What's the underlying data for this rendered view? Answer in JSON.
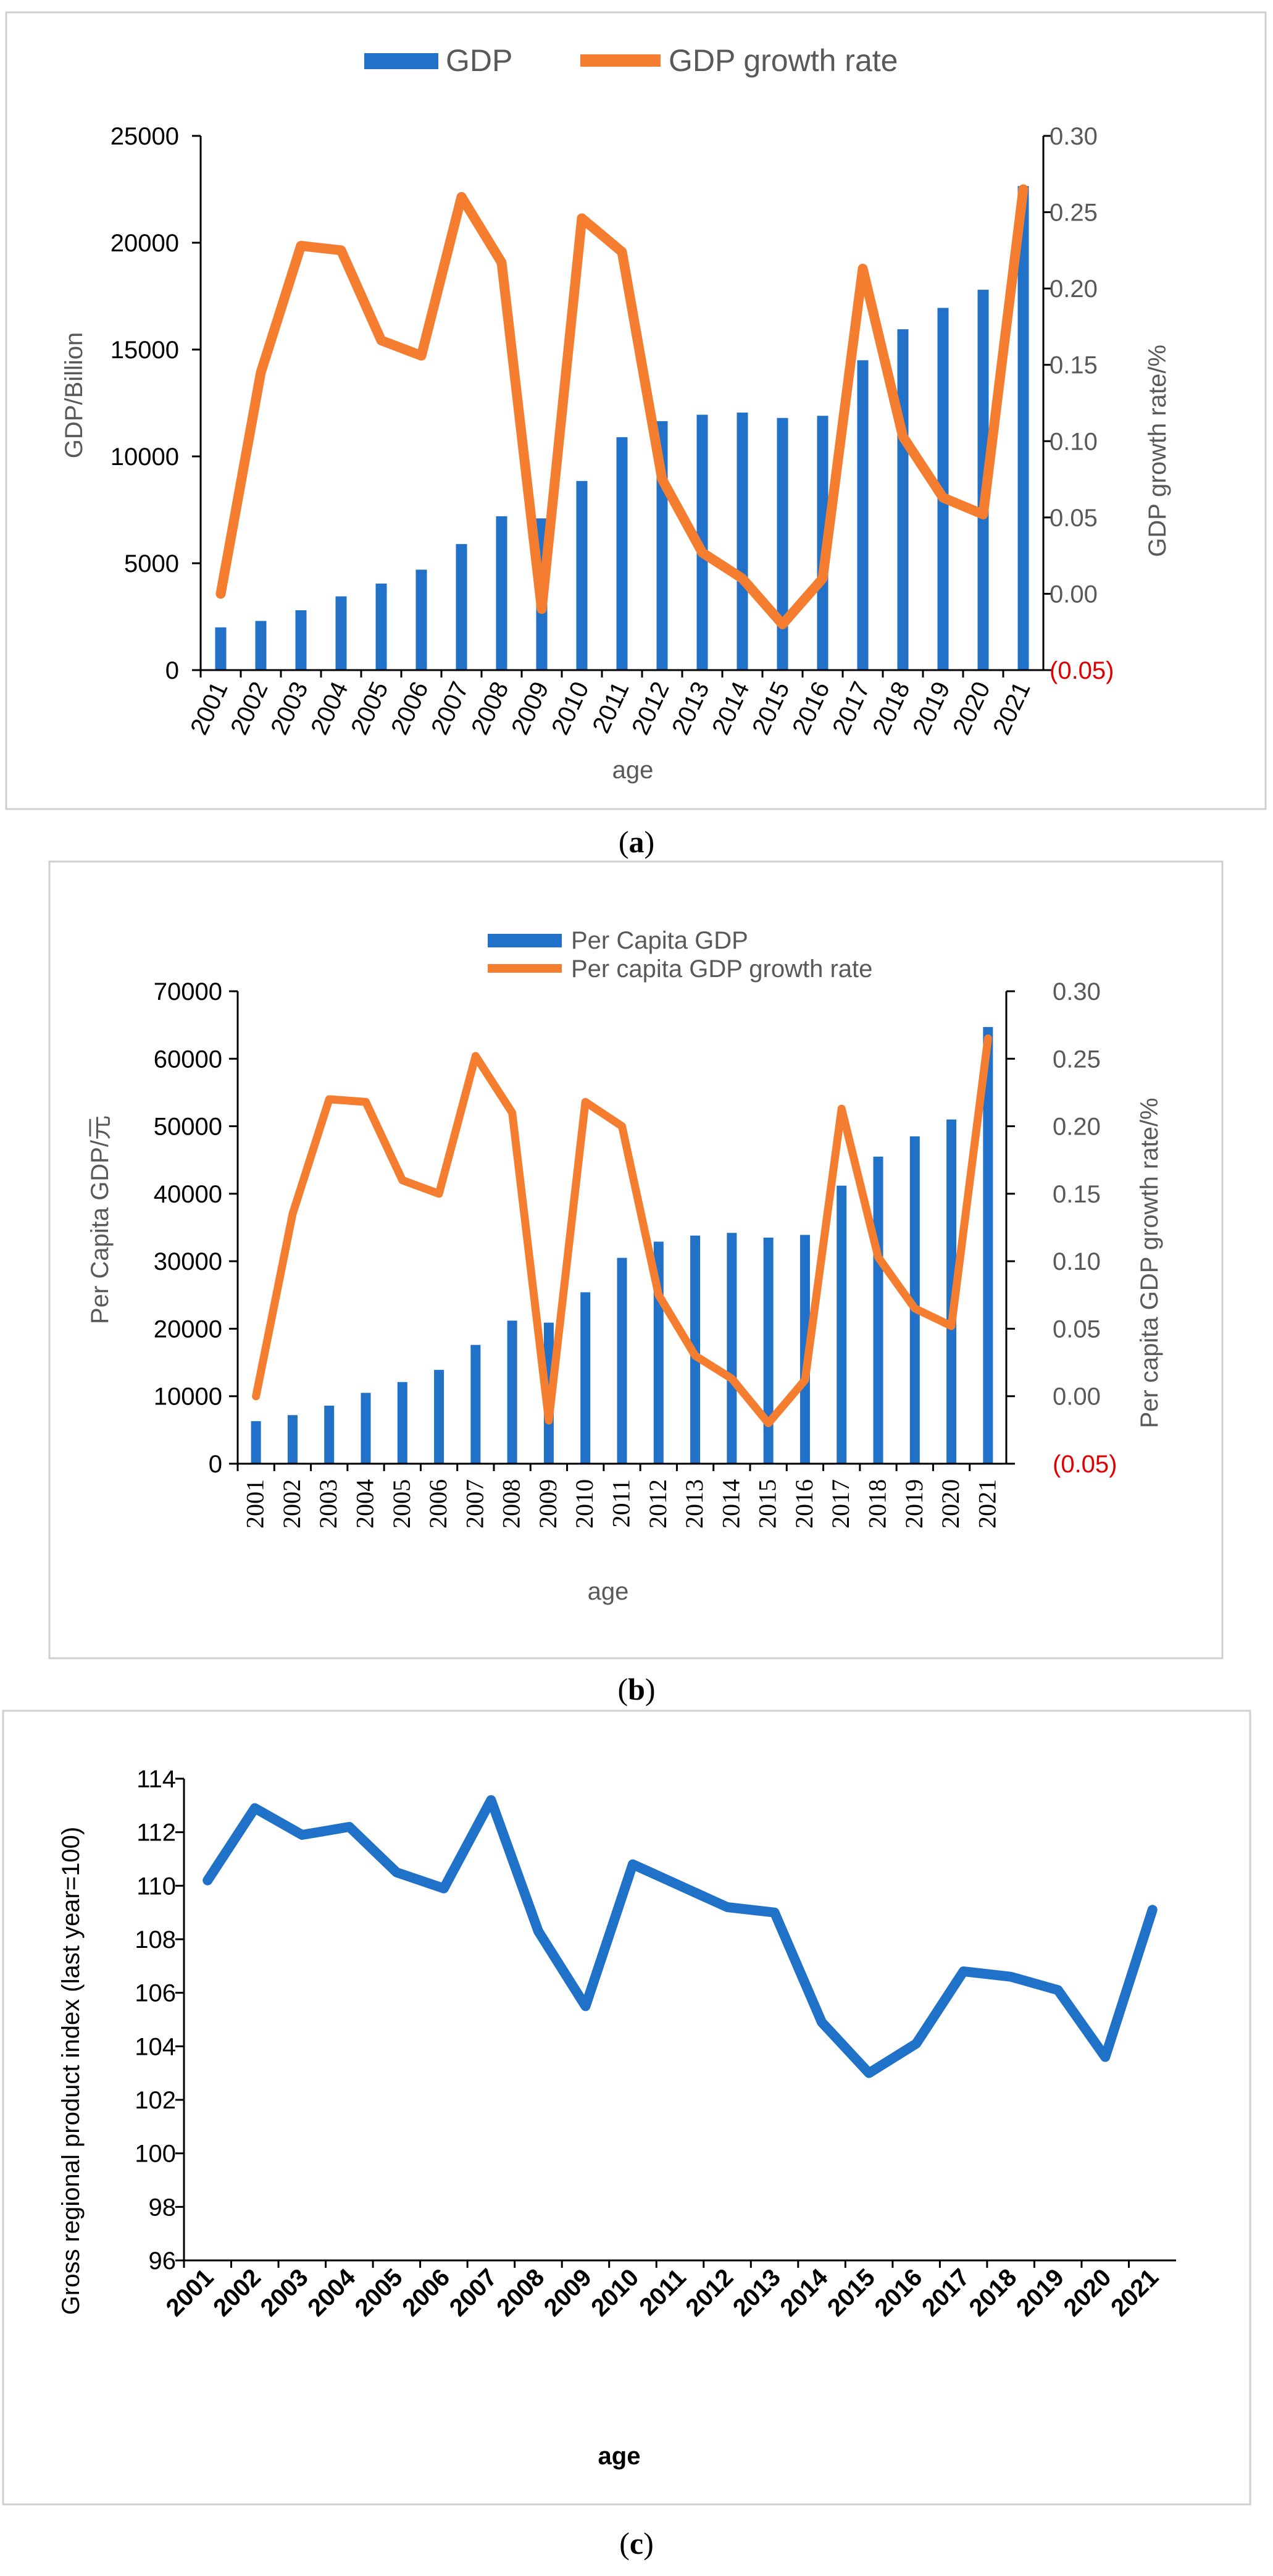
{
  "colors": {
    "bar": "#2171C8",
    "line_orange": "#F47D30",
    "line_blue": "#1F72C7",
    "negative_tick": "#E00000"
  },
  "chart_data": [
    {
      "type": "bar",
      "caption": {
        "open": "(",
        "letter": "a",
        "close": ")"
      },
      "categories": [
        "2001",
        "2002",
        "2003",
        "2004",
        "2005",
        "2006",
        "2007",
        "2008",
        "2009",
        "2010",
        "2011",
        "2012",
        "2013",
        "2014",
        "2015",
        "2016",
        "2017",
        "2018",
        "2019",
        "2020",
        "2021"
      ],
      "series": [
        {
          "name": "GDP",
          "type": "bar",
          "axis": "left",
          "values": [
            2000,
            2300,
            2800,
            3450,
            4050,
            4700,
            5900,
            7200,
            7100,
            8850,
            10900,
            11650,
            11950,
            12050,
            11800,
            11900,
            14500,
            15950,
            16950,
            17800,
            22650
          ]
        },
        {
          "name": "GDP growth rate",
          "type": "line",
          "axis": "right",
          "values": [
            0.0,
            0.145,
            0.228,
            0.225,
            0.166,
            0.156,
            0.26,
            0.217,
            -0.01,
            0.246,
            0.224,
            0.075,
            0.027,
            0.01,
            -0.02,
            0.01,
            0.213,
            0.103,
            0.063,
            0.052,
            0.265
          ]
        }
      ],
      "ylabel": "GDP/Billion",
      "y2label": "GDP growth rate/%",
      "xlabel": "age",
      "ylim": [
        0,
        25000
      ],
      "y2lim": [
        -0.05,
        0.3
      ],
      "yticks": [
        "0",
        "5000",
        "10000",
        "15000",
        "20000",
        "25000"
      ],
      "y2ticks": [
        "(0.05)",
        "0.00",
        "0.05",
        "0.10",
        "0.15",
        "0.20",
        "0.25",
        "0.30"
      ],
      "legend": "top",
      "grid": false
    },
    {
      "type": "bar",
      "caption": {
        "open": "(",
        "letter": "b",
        "close": ")"
      },
      "categories": [
        "2001",
        "2002",
        "2003",
        "2004",
        "2005",
        "2006",
        "2007",
        "2008",
        "2009",
        "2010",
        "2011",
        "2012",
        "2013",
        "2014",
        "2015",
        "2016",
        "2017",
        "2018",
        "2019",
        "2020",
        "2021"
      ],
      "series": [
        {
          "name": "Per Capita GDP",
          "type": "bar",
          "axis": "left",
          "values": [
            6300,
            7200,
            8600,
            10500,
            12100,
            13900,
            17600,
            21200,
            20900,
            25400,
            30500,
            32900,
            33800,
            34200,
            33500,
            33900,
            41200,
            45500,
            48500,
            51000,
            64700
          ]
        },
        {
          "name": "Per capita GDP growth rate",
          "type": "line",
          "axis": "right",
          "values": [
            0.0,
            0.135,
            0.22,
            0.218,
            0.16,
            0.15,
            0.252,
            0.21,
            -0.018,
            0.218,
            0.2,
            0.075,
            0.03,
            0.013,
            -0.02,
            0.012,
            0.213,
            0.103,
            0.065,
            0.052,
            0.265
          ]
        }
      ],
      "ylabel": "Per Capita GDP/元",
      "y2label": "Per capita GDP growth rate/%",
      "xlabel": "age",
      "ylim": [
        0,
        70000
      ],
      "y2lim": [
        -0.05,
        0.3
      ],
      "yticks": [
        "0",
        "10000",
        "20000",
        "30000",
        "40000",
        "50000",
        "60000",
        "70000"
      ],
      "y2ticks": [
        "(0.05)",
        "0.00",
        "0.05",
        "0.10",
        "0.15",
        "0.20",
        "0.25",
        "0.30"
      ],
      "legend": "top",
      "grid": false
    },
    {
      "type": "line",
      "caption": {
        "open": "(",
        "letter": "c",
        "close": ")"
      },
      "categories": [
        "2001",
        "2002",
        "2003",
        "2004",
        "2005",
        "2006",
        "2007",
        "2008",
        "2009",
        "2010",
        "2011",
        "2012",
        "2013",
        "2014",
        "2015",
        "2016",
        "2017",
        "2018",
        "2019",
        "2020",
        "2021"
      ],
      "series": [
        {
          "values": [
            110.2,
            112.9,
            111.9,
            112.2,
            110.5,
            109.9,
            113.2,
            108.3,
            105.5,
            110.8,
            110.0,
            109.2,
            109.0,
            104.9,
            103.0,
            104.1,
            106.8,
            106.6,
            106.1,
            103.6,
            109.1
          ]
        }
      ],
      "ylabel": "Gross regional product index (last year=100)",
      "xlabel": "age",
      "ylim": [
        96,
        114
      ],
      "yticks": [
        "96",
        "98",
        "100",
        "102",
        "104",
        "106",
        "108",
        "110",
        "112",
        "114"
      ],
      "legend": "none",
      "grid": false
    }
  ]
}
